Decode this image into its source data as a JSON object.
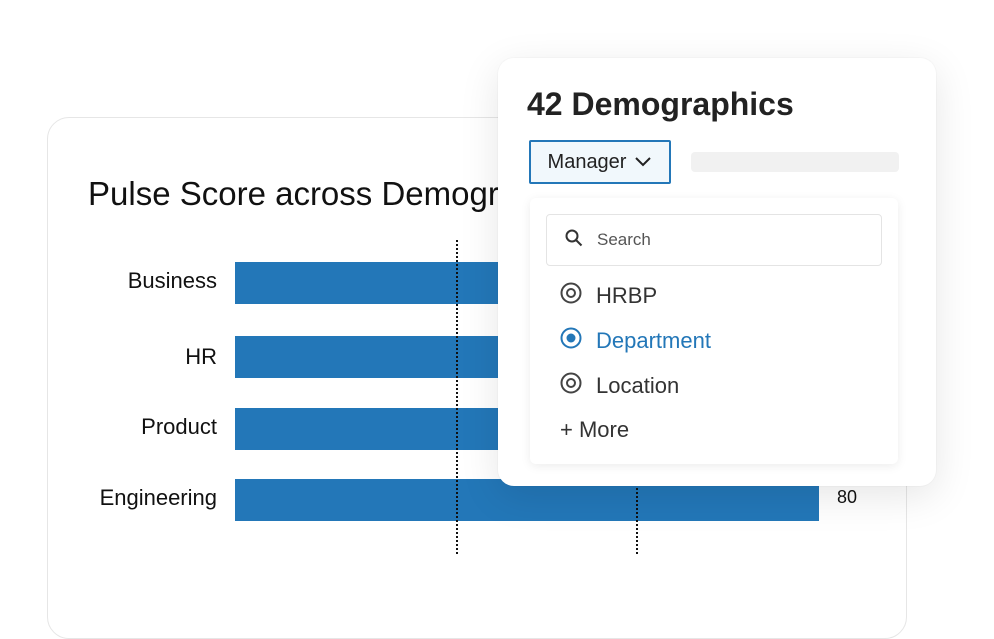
{
  "chart": {
    "title": "Pulse Score across Demographics"
  },
  "chart_data": {
    "type": "bar",
    "orientation": "horizontal",
    "title": "Pulse Score across Demographics",
    "categories": [
      "Business",
      "HR",
      "Product",
      "Engineering"
    ],
    "value_labels": {
      "Engineering": "80"
    },
    "values": [
      null,
      null,
      null,
      80
    ],
    "reference_lines": 2,
    "grid": false
  },
  "panel": {
    "title": "42 Demographics",
    "dropdown_label": "Manager",
    "search_placeholder": "Search",
    "options": [
      {
        "label": "HRBP",
        "selected": false
      },
      {
        "label": "Department",
        "selected": true
      },
      {
        "label": "Location",
        "selected": false
      }
    ],
    "more_label": "+ More"
  },
  "colors": {
    "accent": "#2377b8",
    "bar": "#2377b8"
  }
}
